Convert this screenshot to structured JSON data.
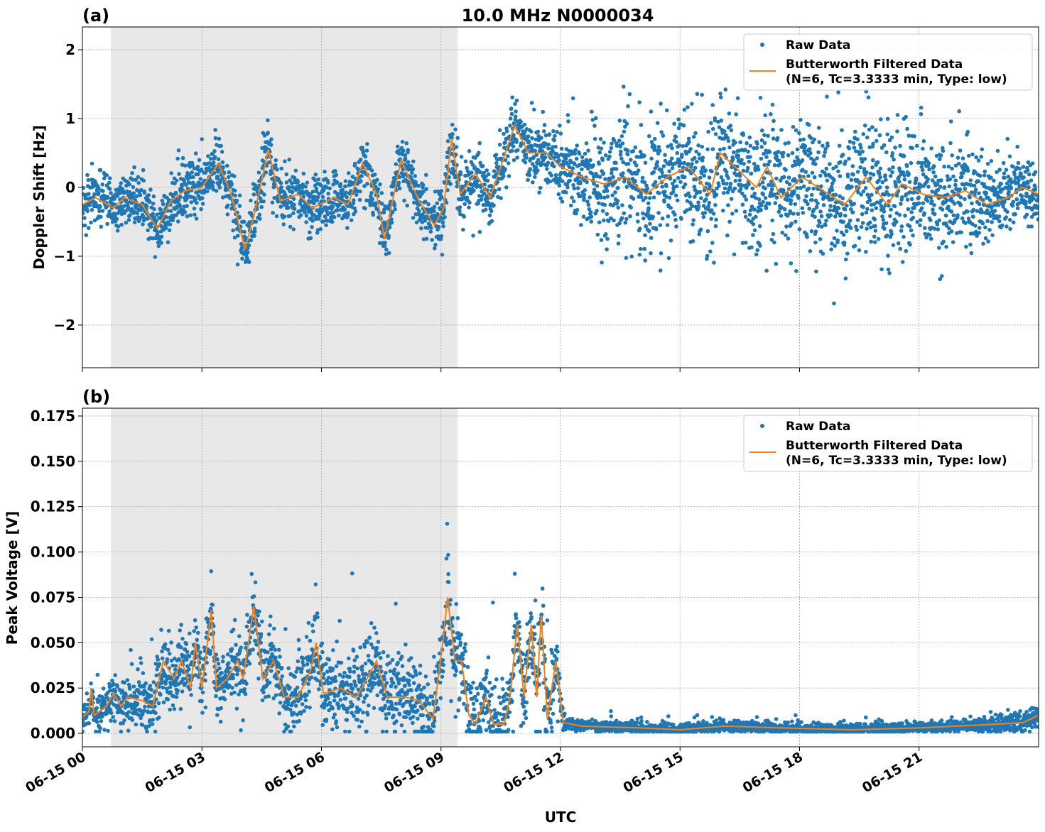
{
  "chart_data": [
    {
      "type": "scatter",
      "panel_label": "(a)",
      "title": "10.0 MHz N0000034",
      "xlabel": "",
      "ylabel": "Doppler Shift [Hz]",
      "ylim": [
        -2.62,
        2.33
      ],
      "yticks": [
        2,
        1,
        0,
        -1,
        -2
      ],
      "ytick_labels": [
        "2",
        "1",
        "0",
        "−1",
        "−2"
      ],
      "xlim": [
        "06-15 00:00",
        "06-16 00:00"
      ],
      "grid": true,
      "shaded_interval": [
        "06-15 00:43",
        "06-15 09:25"
      ],
      "legend": {
        "placement": "upper right",
        "entries": [
          "Raw Data",
          "Butterworth Filtered Data",
          "(N=6, Tc=3.3333 min, Type: low)"
        ]
      },
      "series": [
        {
          "name": "Raw Data",
          "kind": "scatter",
          "color": "#1f77b4",
          "spread_std": [
            [
              "00:00",
              0.2
            ],
            [
              "09:30",
              0.22
            ],
            [
              "10:00",
              0.25
            ],
            [
              "12:00",
              0.25
            ],
            [
              "13:00",
              0.45
            ],
            [
              "18:00",
              0.5
            ],
            [
              "21:00",
              0.45
            ],
            [
              "24:00",
              0.2
            ]
          ]
        },
        {
          "name": "Butterworth Filtered Data",
          "kind": "line",
          "color": "#ff7f0e",
          "points": [
            [
              "00:00",
              -0.25
            ],
            [
              "00:20",
              -0.15
            ],
            [
              "00:47",
              -0.3
            ],
            [
              "01:03",
              -0.15
            ],
            [
              "01:30",
              -0.25
            ],
            [
              "01:53",
              -0.6
            ],
            [
              "02:13",
              -0.2
            ],
            [
              "02:34",
              -0.05
            ],
            [
              "03:00",
              0.0
            ],
            [
              "03:25",
              0.35
            ],
            [
              "03:44",
              -0.1
            ],
            [
              "04:05",
              -0.9
            ],
            [
              "04:21",
              -0.3
            ],
            [
              "04:40",
              0.55
            ],
            [
              "04:58",
              -0.2
            ],
            [
              "05:25",
              -0.1
            ],
            [
              "05:46",
              -0.3
            ],
            [
              "06:19",
              -0.15
            ],
            [
              "06:40",
              -0.25
            ],
            [
              "07:02",
              0.35
            ],
            [
              "07:23",
              -0.1
            ],
            [
              "07:35",
              -0.75
            ],
            [
              "08:00",
              0.4
            ],
            [
              "08:27",
              -0.2
            ],
            [
              "08:50",
              -0.55
            ],
            [
              "09:04",
              -0.3
            ],
            [
              "09:16",
              0.7
            ],
            [
              "09:29",
              -0.1
            ],
            [
              "09:52",
              0.2
            ],
            [
              "10:14",
              -0.15
            ],
            [
              "10:30",
              0.3
            ],
            [
              "10:51",
              0.9
            ],
            [
              "11:12",
              0.5
            ],
            [
              "11:39",
              0.5
            ],
            [
              "12:00",
              0.3
            ],
            [
              "12:32",
              0.15
            ],
            [
              "13:05",
              0.05
            ],
            [
              "13:37",
              0.15
            ],
            [
              "14:09",
              -0.1
            ],
            [
              "14:41",
              0.15
            ],
            [
              "15:13",
              0.3
            ],
            [
              "15:45",
              -0.1
            ],
            [
              "16:01",
              0.5
            ],
            [
              "16:28",
              0.25
            ],
            [
              "16:55",
              0.0
            ],
            [
              "17:11",
              0.3
            ],
            [
              "17:32",
              -0.15
            ],
            [
              "18:04",
              0.15
            ],
            [
              "18:36",
              -0.05
            ],
            [
              "19:08",
              -0.25
            ],
            [
              "19:40",
              0.15
            ],
            [
              "20:12",
              -0.25
            ],
            [
              "20:34",
              0.05
            ],
            [
              "21:06",
              -0.1
            ],
            [
              "21:38",
              -0.15
            ],
            [
              "22:10",
              -0.05
            ],
            [
              "22:42",
              -0.25
            ],
            [
              "23:14",
              -0.15
            ],
            [
              "23:35",
              0.0
            ],
            [
              "24:00",
              -0.1
            ]
          ]
        }
      ]
    },
    {
      "type": "scatter",
      "panel_label": "(b)",
      "title": "",
      "xlabel": "UTC",
      "ylabel": "Peak Voltage [V]",
      "ylim": [
        -0.0074,
        0.1793
      ],
      "yticks": [
        0.0,
        0.025,
        0.05,
        0.075,
        0.1,
        0.125,
        0.15,
        0.175
      ],
      "ytick_labels": [
        "0.000",
        "0.025",
        "0.050",
        "0.075",
        "0.100",
        "0.125",
        "0.150",
        "0.175"
      ],
      "xlim": [
        "06-15 00:00",
        "06-16 00:00"
      ],
      "xtick_labels": [
        "06-15 00",
        "06-15 03",
        "06-15 06",
        "06-15 09",
        "06-15 12",
        "06-15 15",
        "06-15 18",
        "06-15 21"
      ],
      "grid": true,
      "shaded_interval": [
        "06-15 00:43",
        "06-15 09:25"
      ],
      "legend": {
        "placement": "upper right",
        "entries": [
          "Raw Data",
          "Butterworth Filtered Data",
          "(N=6, Tc=3.3333 min, Type: low)"
        ]
      },
      "series": [
        {
          "name": "Raw Data",
          "kind": "scatter",
          "color": "#1f77b4",
          "spread_std": [
            [
              "00:00",
              0.005
            ],
            [
              "02:00",
              0.011
            ],
            [
              "09:00",
              0.014
            ],
            [
              "11:50",
              0.014
            ],
            [
              "12:10",
              0.002
            ],
            [
              "22:00",
              0.002
            ],
            [
              "24:00",
              0.004
            ]
          ]
        },
        {
          "name": "Butterworth Filtered Data",
          "kind": "line",
          "color": "#ff7f0e",
          "points": [
            [
              "00:00",
              0.009
            ],
            [
              "00:10",
              0.012
            ],
            [
              "00:13",
              0.025
            ],
            [
              "00:18",
              0.01
            ],
            [
              "00:36",
              0.015
            ],
            [
              "00:47",
              0.022
            ],
            [
              "00:58",
              0.015
            ],
            [
              "01:08",
              0.02
            ],
            [
              "01:30",
              0.018
            ],
            [
              "01:46",
              0.015
            ],
            [
              "02:02",
              0.04
            ],
            [
              "02:18",
              0.03
            ],
            [
              "02:29",
              0.04
            ],
            [
              "02:43",
              0.025
            ],
            [
              "02:50",
              0.05
            ],
            [
              "03:00",
              0.025
            ],
            [
              "03:14",
              0.068
            ],
            [
              "03:22",
              0.025
            ],
            [
              "03:38",
              0.03
            ],
            [
              "03:54",
              0.04
            ],
            [
              "04:02",
              0.03
            ],
            [
              "04:18",
              0.07
            ],
            [
              "04:32",
              0.03
            ],
            [
              "04:48",
              0.04
            ],
            [
              "05:04",
              0.02
            ],
            [
              "05:25",
              0.02
            ],
            [
              "05:44",
              0.035
            ],
            [
              "05:52",
              0.05
            ],
            [
              "06:03",
              0.022
            ],
            [
              "06:29",
              0.025
            ],
            [
              "06:51",
              0.02
            ],
            [
              "07:01",
              0.025
            ],
            [
              "07:23",
              0.04
            ],
            [
              "07:39",
              0.02
            ],
            [
              "08:06",
              0.02
            ],
            [
              "08:27",
              0.018
            ],
            [
              "08:48",
              0.008
            ],
            [
              "09:01",
              0.045
            ],
            [
              "09:10",
              0.075
            ],
            [
              "09:21",
              0.04
            ],
            [
              "09:31",
              0.04
            ],
            [
              "09:42",
              0.01
            ],
            [
              "09:52",
              0.005
            ],
            [
              "10:08",
              0.02
            ],
            [
              "10:19",
              0.005
            ],
            [
              "10:35",
              0.005
            ],
            [
              "10:44",
              0.02
            ],
            [
              "10:55",
              0.06
            ],
            [
              "11:05",
              0.02
            ],
            [
              "11:16",
              0.06
            ],
            [
              "11:24",
              0.02
            ],
            [
              "11:31",
              0.065
            ],
            [
              "11:40",
              0.008
            ],
            [
              "11:53",
              0.04
            ],
            [
              "12:04",
              0.006
            ],
            [
              "12:32",
              0.004
            ],
            [
              "13:59",
              0.003
            ],
            [
              "15:00",
              0.002
            ],
            [
              "16:07",
              0.004
            ],
            [
              "17:32",
              0.003
            ],
            [
              "19:20",
              0.002
            ],
            [
              "21:00",
              0.003
            ],
            [
              "22:54",
              0.005
            ],
            [
              "23:37",
              0.006
            ],
            [
              "24:00",
              0.01
            ]
          ]
        }
      ]
    }
  ]
}
